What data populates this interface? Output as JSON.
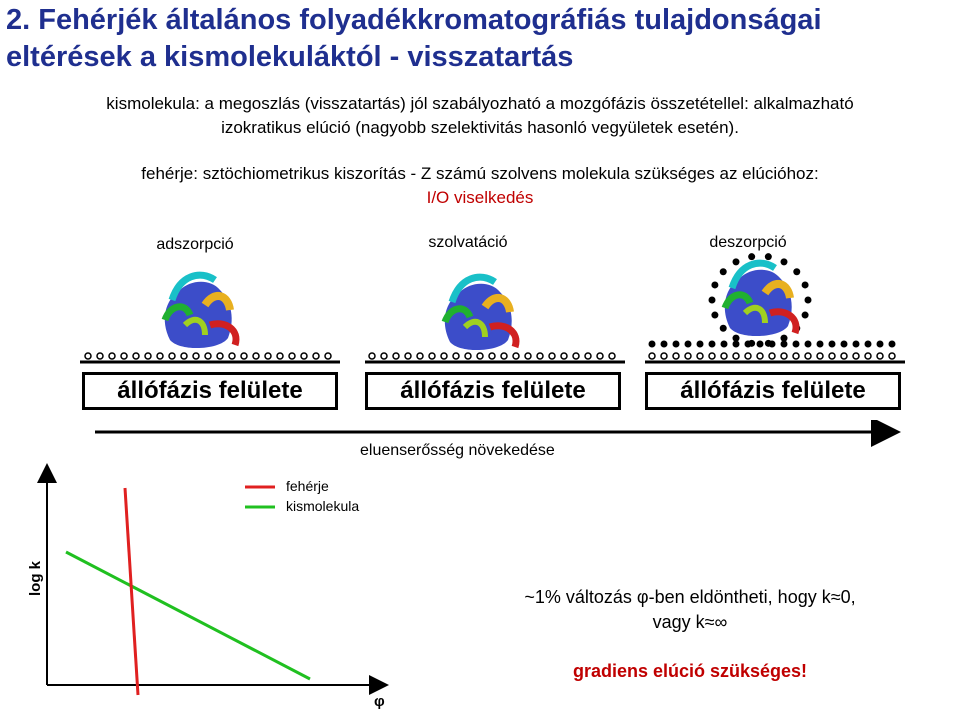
{
  "title_line1": "2. Fehérjék általános folyadékkromatográfiás tulajdonságai",
  "title_line2": "eltérések a kismolekuláktól - visszatartás",
  "para1_line1": "kismolekula: a megoszlás (visszatartás) jól szabályozható a mozgófázis összetétellel: alkalmazható",
  "para1_line2": "izokratikus elúció (nagyobb szelektivitás hasonló vegyületek esetén).",
  "para2_line1": "fehérje: sztöchiometrikus kiszorítás - Z számú szolvens molekula szükséges az elúcióhoz:",
  "para2_line2": "I/O viselkedés",
  "stages": [
    {
      "label": "adszorpció",
      "surface": "állófázis felülete"
    },
    {
      "label": "szolvatáció",
      "surface": "állófázis felülete"
    },
    {
      "label": "deszorpció",
      "surface": "állófázis felülete"
    }
  ],
  "arrow_label": "eluenserősség növekedése",
  "legend": {
    "protein": "fehérje",
    "small_molecule": "kismolekula",
    "protein_color": "#e02020",
    "small_molecule_color": "#20c020"
  },
  "axes": {
    "ylabel": "log k",
    "xlabel": "φ"
  },
  "bottom": {
    "line1": "~1% változás φ-ben eldöntheti, hogy k≈0,",
    "line2": "vagy k≈∞",
    "conclusion": "gradiens elúció szükséges!"
  },
  "colors": {
    "title": "#1f2f8f",
    "highlight": "#c00000"
  }
}
